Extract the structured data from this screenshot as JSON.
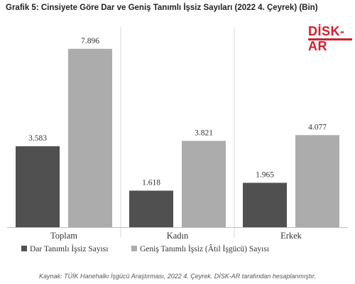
{
  "title": "Grafik 5: Cinsiyete Göre Dar ve Geniş Tanımlı İşsiz Sayıları (2022 4. Çeyrek) (Bin)",
  "logo": {
    "text": "DİSK-AR"
  },
  "source": "Kaynak: TÜİK Hanehalkı İşgücü Araştırması, 2022 4. Çeyrek. DİSK-AR tarafından hesaplanmıştır.",
  "colors": {
    "series1": "#505050",
    "series2": "#acacac",
    "separator": "#d9d9d9"
  },
  "chart_data": {
    "type": "bar",
    "categories": [
      "Toplam",
      "Kadın",
      "Erkek"
    ],
    "series": [
      {
        "name": "Dar Tanımlı İşsiz Sayısı",
        "values": [
          3583,
          1618,
          1965
        ],
        "labels": [
          "3.583",
          "1.618",
          "1.965"
        ]
      },
      {
        "name": "Geniş Tanımlı İşsiz (Âtıl İşgücü) Sayısı",
        "values": [
          7896,
          3821,
          4077
        ],
        "labels": [
          "7.896",
          "3.821",
          "4.077"
        ]
      }
    ],
    "title": "Grafik 5: Cinsiyete Göre Dar ve Geniş Tanımlı İşsiz Sayıları (2022 4. Çeyrek) (Bin)",
    "ylim": [
      0,
      8800
    ],
    "grid": false,
    "legend": "bottom"
  }
}
